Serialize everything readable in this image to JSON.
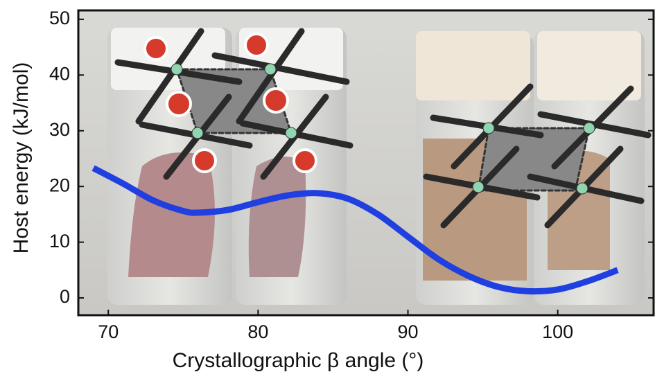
{
  "chart_data": {
    "type": "line",
    "xlabel": "Crystallographic β angle (°)",
    "ylabel": "Host energy (kJ/mol)",
    "x": [
      69,
      71,
      73,
      75,
      76,
      78,
      80,
      82,
      84,
      86,
      88,
      90,
      92,
      94,
      96,
      98,
      100,
      102,
      104
    ],
    "values": [
      23.3,
      20.5,
      17.5,
      15.6,
      15.3,
      15.8,
      17.2,
      18.4,
      18.8,
      17.8,
      15,
      11,
      7,
      4,
      2,
      1.2,
      1.5,
      3,
      5
    ],
    "color": "#1f3fe0",
    "xlim": [
      68,
      106.4
    ],
    "xticks": [
      70,
      80,
      90,
      100
    ],
    "ylim": [
      -3.1,
      51.6
    ],
    "yticks": [
      0,
      10,
      20,
      30,
      40,
      50
    ]
  }
}
